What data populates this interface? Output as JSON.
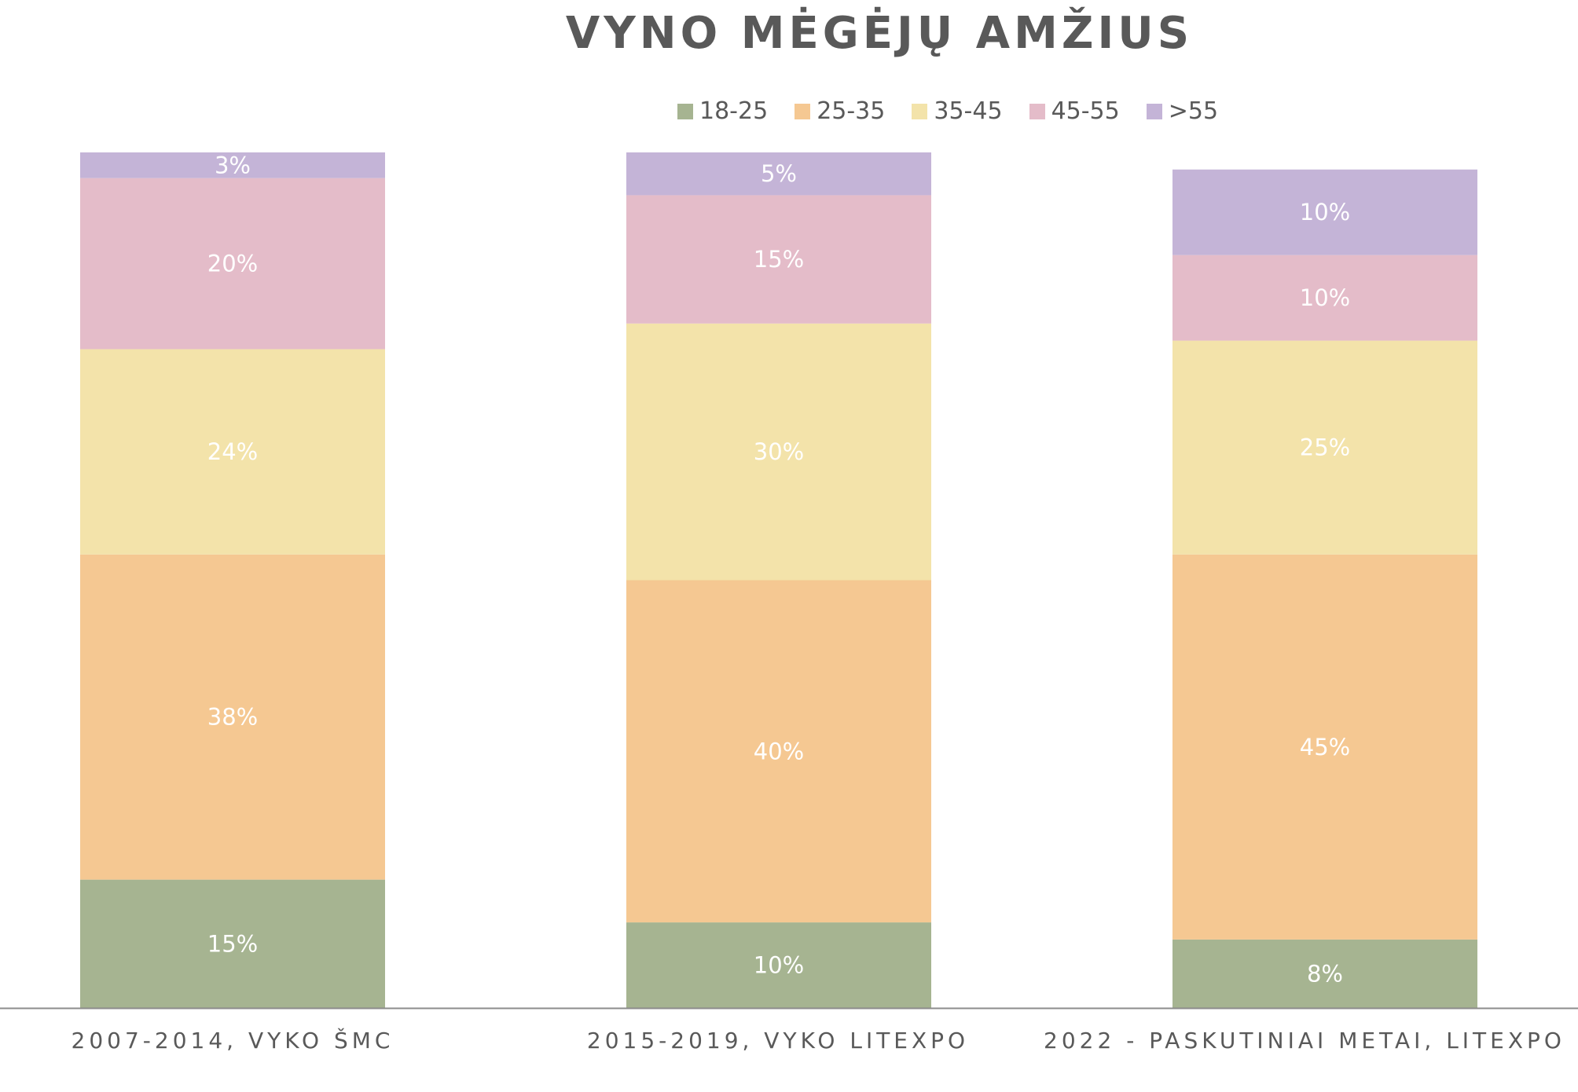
{
  "chart_data": {
    "type": "bar",
    "stacked": true,
    "title": "VYNO MĖGĖJŲ AMŽIUS",
    "categories": [
      "2007-2014, VYKO ŠMC",
      "2015-2019, VYKO LITEXPO",
      "2022 - PASKUTINIAI METAI, LITEXPO"
    ],
    "series": [
      {
        "name": "18-25",
        "color": "#A6B491",
        "values": [
          15,
          10,
          8
        ],
        "labels": [
          "15%",
          "10%",
          "8%"
        ]
      },
      {
        "name": "25-35",
        "color": "#F5C892",
        "values": [
          38,
          40,
          45
        ],
        "labels": [
          "38%",
          "40%",
          "45%"
        ]
      },
      {
        "name": "35-45",
        "color": "#F3E3AA",
        "values": [
          24,
          30,
          25
        ],
        "labels": [
          "24%",
          "30%",
          "25%"
        ]
      },
      {
        "name": "45-55",
        "color": "#E4BCC9",
        "values": [
          20,
          15,
          10
        ],
        "labels": [
          "20%",
          "15%",
          "10%"
        ]
      },
      {
        "name": ">55",
        "color": "#C4B4D7",
        "values": [
          3,
          5,
          10
        ],
        "labels": [
          "3%",
          "5%",
          "10%"
        ]
      }
    ],
    "ylim": [
      0,
      100
    ],
    "legend_position": "top"
  }
}
